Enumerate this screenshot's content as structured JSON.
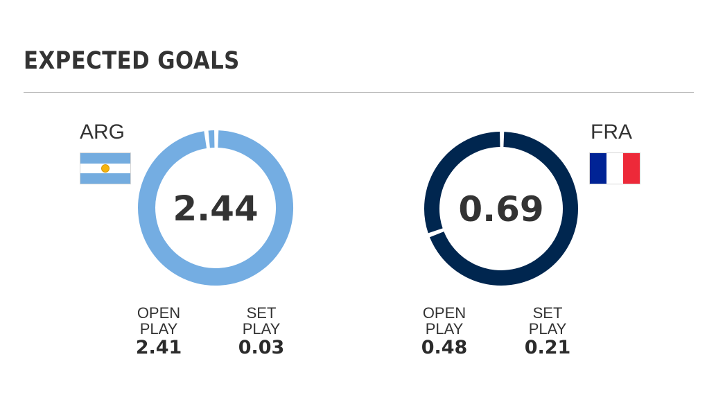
{
  "title": "EXPECTED GOALS",
  "colors": {
    "arg_ring": "#74ade2",
    "fra_ring": "#00264f",
    "text": "#333333",
    "rule": "#bdbdbd"
  },
  "chart_data": [
    {
      "type": "pie",
      "team": "ARG",
      "flag": "argentina-flag",
      "total": "2.44",
      "categories": [
        "OPEN PLAY",
        "SET PLAY"
      ],
      "values": [
        2.41,
        0.03
      ],
      "value_labels": [
        "2.41",
        "0.03"
      ],
      "color": "#74ade2"
    },
    {
      "type": "pie",
      "team": "FRA",
      "flag": "france-flag",
      "total": "0.69",
      "categories": [
        "OPEN PLAY",
        "SET PLAY"
      ],
      "values": [
        0.48,
        0.21
      ],
      "value_labels": [
        "0.48",
        "0.21"
      ],
      "color": "#00264f",
      "flag_colors": [
        "#002395",
        "#ffffff",
        "#ed2939"
      ]
    }
  ],
  "breakdown_labels": {
    "open": [
      "OPEN",
      "PLAY"
    ],
    "set": [
      "SET",
      "PLAY"
    ]
  }
}
